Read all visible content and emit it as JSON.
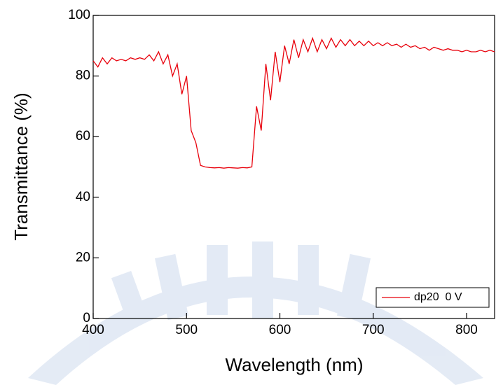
{
  "chart_data": {
    "type": "line",
    "x_label": "Wavelength (nm)",
    "y_label": "Transmittance (%)",
    "xlim": [
      400,
      830
    ],
    "ylim": [
      0,
      100
    ],
    "xticks": [
      400,
      500,
      600,
      700,
      800
    ],
    "yticks": [
      0,
      20,
      40,
      60,
      80,
      100
    ],
    "legend_position": "lower right",
    "x": [
      400,
      405,
      410,
      415,
      420,
      425,
      430,
      435,
      440,
      445,
      450,
      455,
      460,
      465,
      470,
      475,
      480,
      485,
      490,
      495,
      500,
      505,
      510,
      515,
      520,
      525,
      530,
      535,
      540,
      545,
      550,
      555,
      560,
      565,
      570,
      575,
      580,
      585,
      590,
      595,
      600,
      605,
      610,
      615,
      620,
      625,
      630,
      635,
      640,
      645,
      650,
      655,
      660,
      665,
      670,
      675,
      680,
      685,
      690,
      695,
      700,
      705,
      710,
      715,
      720,
      725,
      730,
      735,
      740,
      745,
      750,
      755,
      760,
      765,
      770,
      775,
      780,
      785,
      790,
      795,
      800,
      805,
      810,
      815,
      820,
      825,
      830
    ],
    "series": [
      {
        "name": "dp20  0 V",
        "color": "#e8000b",
        "values": [
          85,
          83,
          86,
          84,
          86,
          85,
          85.5,
          85,
          86,
          85.5,
          86,
          85.5,
          87,
          85,
          88,
          84,
          87,
          80,
          84,
          74,
          80,
          62,
          58,
          50.5,
          50,
          49.8,
          49.7,
          49.8,
          49.6,
          49.8,
          49.7,
          49.6,
          49.8,
          49.7,
          50,
          70,
          62,
          84,
          72,
          88,
          78,
          90,
          84,
          92,
          86,
          92,
          88,
          92.5,
          88,
          92,
          89,
          92.5,
          89.5,
          92,
          90,
          92,
          90,
          91.5,
          90,
          91.5,
          90,
          91,
          90,
          91,
          90,
          90.5,
          89.5,
          90.5,
          89.5,
          90,
          89,
          89.5,
          88.5,
          89.5,
          89,
          88.5,
          89,
          88.5,
          88.5,
          88,
          88.5,
          88,
          88,
          88.5,
          88,
          88.5,
          88
        ]
      }
    ]
  }
}
